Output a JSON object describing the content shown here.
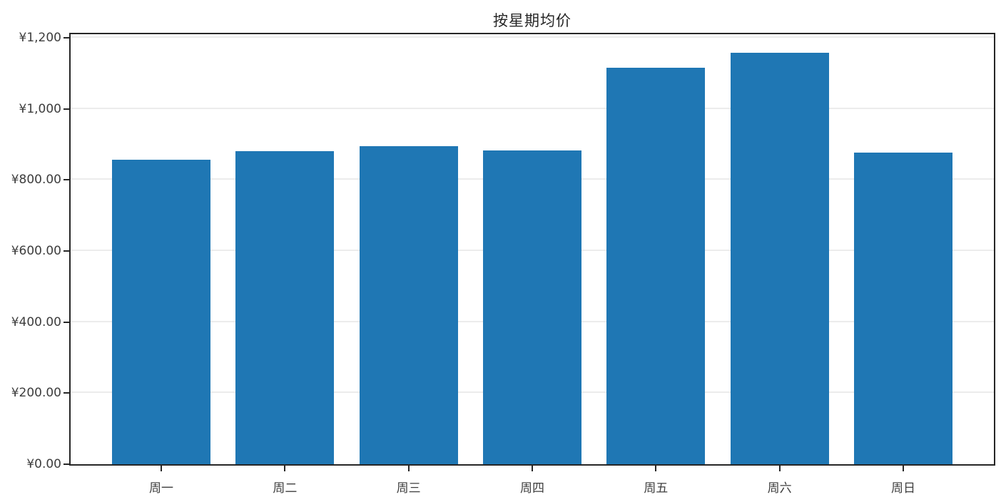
{
  "chart_data": {
    "type": "bar",
    "title": "按星期均价",
    "categories": [
      "周一",
      "周二",
      "周三",
      "周四",
      "周五",
      "周六",
      "周日"
    ],
    "values": [
      856,
      880,
      895,
      883,
      1116,
      1157,
      877
    ],
    "xlabel": "",
    "ylabel": "",
    "ylim": [
      0,
      1210
    ],
    "y_ticks": [
      {
        "value": 0,
        "label": "¥0.00"
      },
      {
        "value": 200,
        "label": "¥200.00"
      },
      {
        "value": 400,
        "label": "¥400.00"
      },
      {
        "value": 600,
        "label": "¥600.00"
      },
      {
        "value": 800,
        "label": "¥800.00"
      },
      {
        "value": 1000,
        "label": "¥1,000"
      },
      {
        "value": 1200,
        "label": "¥1,200"
      }
    ],
    "grid": "horizontal",
    "legend": "none",
    "bar_color": "#1f77b4"
  },
  "colors": {
    "background": "#ffffff",
    "bar": "#1f77b4",
    "spine": "#262626",
    "gridline": "#ececec",
    "tick_text": "#3d3d3d",
    "title_text": "#262626"
  }
}
